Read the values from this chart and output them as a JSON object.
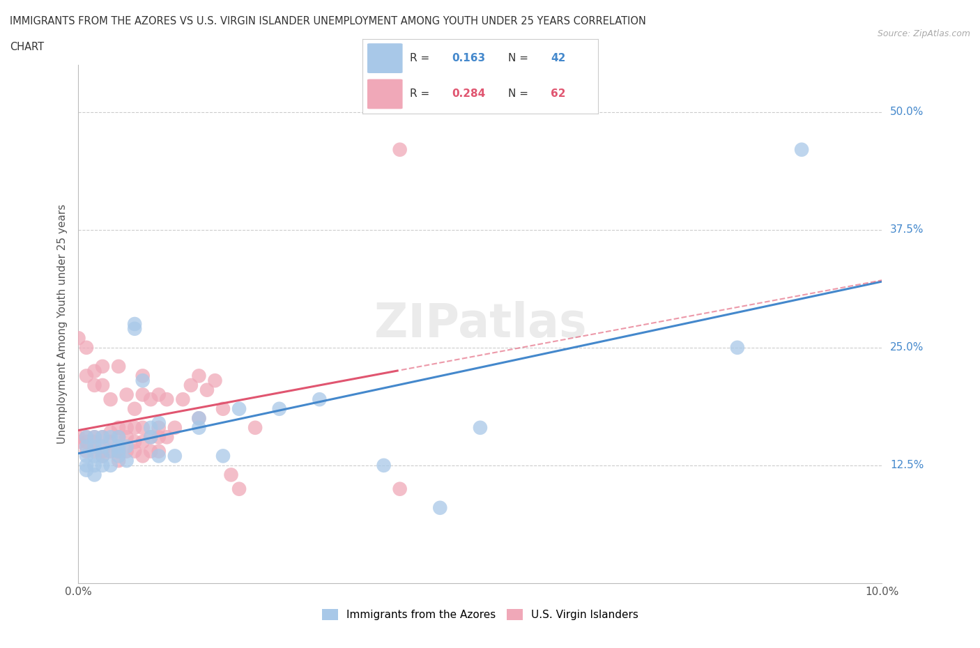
{
  "title_line1": "IMMIGRANTS FROM THE AZORES VS U.S. VIRGIN ISLANDER UNEMPLOYMENT AMONG YOUTH UNDER 25 YEARS CORRELATION",
  "title_line2": "CHART",
  "source": "Source: ZipAtlas.com",
  "ylabel": "Unemployment Among Youth under 25 years",
  "xlim": [
    0.0,
    0.1
  ],
  "ylim": [
    0.0,
    0.55
  ],
  "xticks": [
    0.0,
    0.02,
    0.04,
    0.06,
    0.08,
    0.1
  ],
  "xticklabels": [
    "0.0%",
    "",
    "",
    "",
    "",
    "10.0%"
  ],
  "yticks": [
    0.0,
    0.125,
    0.25,
    0.375,
    0.5
  ],
  "yticklabels": [
    "",
    "12.5%",
    "25.0%",
    "37.5%",
    "50.0%"
  ],
  "blue_R": 0.163,
  "blue_N": 42,
  "pink_R": 0.284,
  "pink_N": 62,
  "blue_color": "#a8c8e8",
  "pink_color": "#f0a8b8",
  "blue_line_color": "#4488cc",
  "pink_line_color": "#e05570",
  "legend_label_blue": "Immigrants from the Azores",
  "legend_label_pink": "U.S. Virgin Islanders",
  "watermark": "ZIPatlas",
  "background_color": "#ffffff",
  "grid_color": "#cccccc",
  "blue_x": [
    0.001,
    0.001,
    0.001,
    0.001,
    0.001,
    0.002,
    0.002,
    0.002,
    0.002,
    0.002,
    0.003,
    0.003,
    0.003,
    0.003,
    0.004,
    0.004,
    0.004,
    0.005,
    0.005,
    0.005,
    0.005,
    0.006,
    0.006,
    0.007,
    0.007,
    0.008,
    0.009,
    0.009,
    0.01,
    0.01,
    0.012,
    0.015,
    0.015,
    0.018,
    0.02,
    0.025,
    0.03,
    0.038,
    0.045,
    0.05,
    0.082,
    0.09
  ],
  "blue_y": [
    0.155,
    0.145,
    0.135,
    0.125,
    0.12,
    0.155,
    0.145,
    0.135,
    0.125,
    0.115,
    0.155,
    0.145,
    0.135,
    0.125,
    0.155,
    0.14,
    0.125,
    0.155,
    0.145,
    0.14,
    0.135,
    0.145,
    0.13,
    0.27,
    0.275,
    0.215,
    0.165,
    0.155,
    0.17,
    0.135,
    0.135,
    0.165,
    0.175,
    0.135,
    0.185,
    0.185,
    0.195,
    0.125,
    0.08,
    0.165,
    0.25,
    0.46
  ],
  "pink_x": [
    0.0,
    0.0,
    0.0,
    0.001,
    0.001,
    0.001,
    0.001,
    0.001,
    0.002,
    0.002,
    0.002,
    0.002,
    0.002,
    0.003,
    0.003,
    0.003,
    0.003,
    0.003,
    0.004,
    0.004,
    0.004,
    0.004,
    0.005,
    0.005,
    0.005,
    0.005,
    0.005,
    0.006,
    0.006,
    0.006,
    0.006,
    0.007,
    0.007,
    0.007,
    0.007,
    0.008,
    0.008,
    0.008,
    0.008,
    0.008,
    0.009,
    0.009,
    0.009,
    0.01,
    0.01,
    0.01,
    0.01,
    0.011,
    0.011,
    0.012,
    0.013,
    0.014,
    0.015,
    0.015,
    0.016,
    0.017,
    0.018,
    0.019,
    0.02,
    0.022,
    0.04,
    0.04
  ],
  "pink_y": [
    0.15,
    0.155,
    0.26,
    0.14,
    0.15,
    0.155,
    0.22,
    0.25,
    0.14,
    0.15,
    0.155,
    0.21,
    0.225,
    0.135,
    0.14,
    0.155,
    0.21,
    0.23,
    0.14,
    0.15,
    0.16,
    0.195,
    0.13,
    0.14,
    0.155,
    0.165,
    0.23,
    0.14,
    0.155,
    0.165,
    0.2,
    0.14,
    0.15,
    0.165,
    0.185,
    0.135,
    0.15,
    0.165,
    0.2,
    0.22,
    0.14,
    0.155,
    0.195,
    0.14,
    0.155,
    0.165,
    0.2,
    0.155,
    0.195,
    0.165,
    0.195,
    0.21,
    0.175,
    0.22,
    0.205,
    0.215,
    0.185,
    0.115,
    0.1,
    0.165,
    0.1,
    0.46
  ]
}
